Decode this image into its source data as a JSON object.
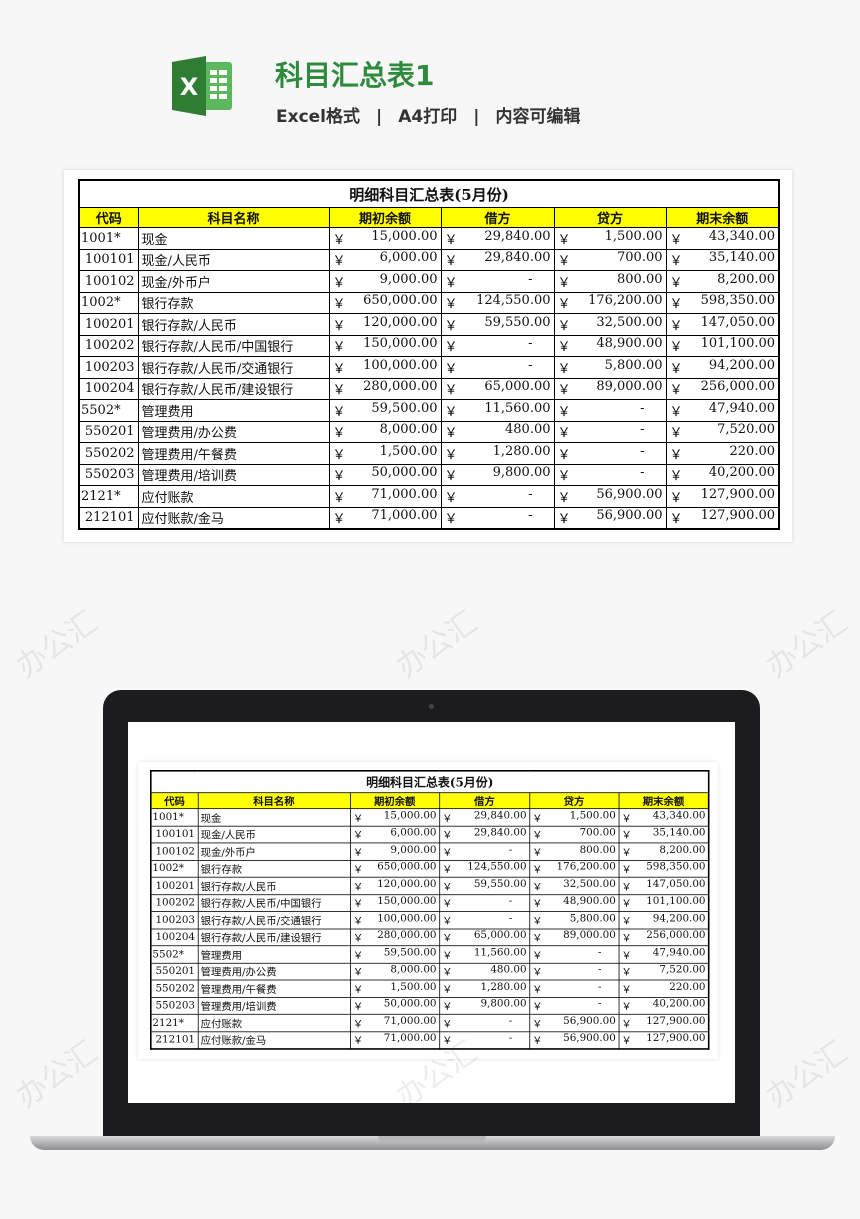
{
  "header": {
    "title": "科目汇总表1",
    "format": "Excel格式",
    "print": "A4打印",
    "editable": "内容可编辑",
    "separator": "|",
    "logo_icon": "excel-icon",
    "accent_color": "#2e8b3e"
  },
  "watermark": "办公汇",
  "table": {
    "caption": "明细科目汇总表(5月份)",
    "currency": "￥",
    "header_bg": "#ffff00",
    "columns": [
      "代码",
      "科目名称",
      "期初余额",
      "借方",
      "贷方",
      "期末余额"
    ],
    "rows": [
      {
        "code": "1001*",
        "name": "现金",
        "opening": "15,000.00",
        "debit": "29,840.00",
        "credit": "1,500.00",
        "closing": "43,340.00",
        "top": true
      },
      {
        "code": "100101",
        "name": "现金/人民币",
        "opening": "6,000.00",
        "debit": "29,840.00",
        "credit": "700.00",
        "closing": "35,140.00"
      },
      {
        "code": "100102",
        "name": "现金/外币户",
        "opening": "9,000.00",
        "debit": "-",
        "credit": "800.00",
        "closing": "8,200.00"
      },
      {
        "code": "1002*",
        "name": "银行存款",
        "opening": "650,000.00",
        "debit": "124,550.00",
        "credit": "176,200.00",
        "closing": "598,350.00",
        "top": true
      },
      {
        "code": "100201",
        "name": "银行存款/人民币",
        "opening": "120,000.00",
        "debit": "59,550.00",
        "credit": "32,500.00",
        "closing": "147,050.00"
      },
      {
        "code": "100202",
        "name": "银行存款/人民币/中国银行",
        "opening": "150,000.00",
        "debit": "-",
        "credit": "48,900.00",
        "closing": "101,100.00"
      },
      {
        "code": "100203",
        "name": "银行存款/人民币/交通银行",
        "opening": "100,000.00",
        "debit": "-",
        "credit": "5,800.00",
        "closing": "94,200.00"
      },
      {
        "code": "100204",
        "name": "银行存款/人民币/建设银行",
        "opening": "280,000.00",
        "debit": "65,000.00",
        "credit": "89,000.00",
        "closing": "256,000.00"
      },
      {
        "code": "5502*",
        "name": "管理费用",
        "opening": "59,500.00",
        "debit": "11,560.00",
        "credit": "-",
        "closing": "47,940.00",
        "top": true
      },
      {
        "code": "550201",
        "name": "管理费用/办公费",
        "opening": "8,000.00",
        "debit": "480.00",
        "credit": "-",
        "closing": "7,520.00"
      },
      {
        "code": "550202",
        "name": "管理费用/午餐费",
        "opening": "1,500.00",
        "debit": "1,280.00",
        "credit": "-",
        "closing": "220.00"
      },
      {
        "code": "550203",
        "name": "管理费用/培训费",
        "opening": "50,000.00",
        "debit": "9,800.00",
        "credit": "-",
        "closing": "40,200.00"
      },
      {
        "code": "2121*",
        "name": "应付账款",
        "opening": "71,000.00",
        "debit": "-",
        "credit": "56,900.00",
        "closing": "127,900.00",
        "top": true
      },
      {
        "code": "212101",
        "name": "应付账款/金马",
        "opening": "71,000.00",
        "debit": "-",
        "credit": "56,900.00",
        "closing": "127,900.00"
      }
    ]
  }
}
